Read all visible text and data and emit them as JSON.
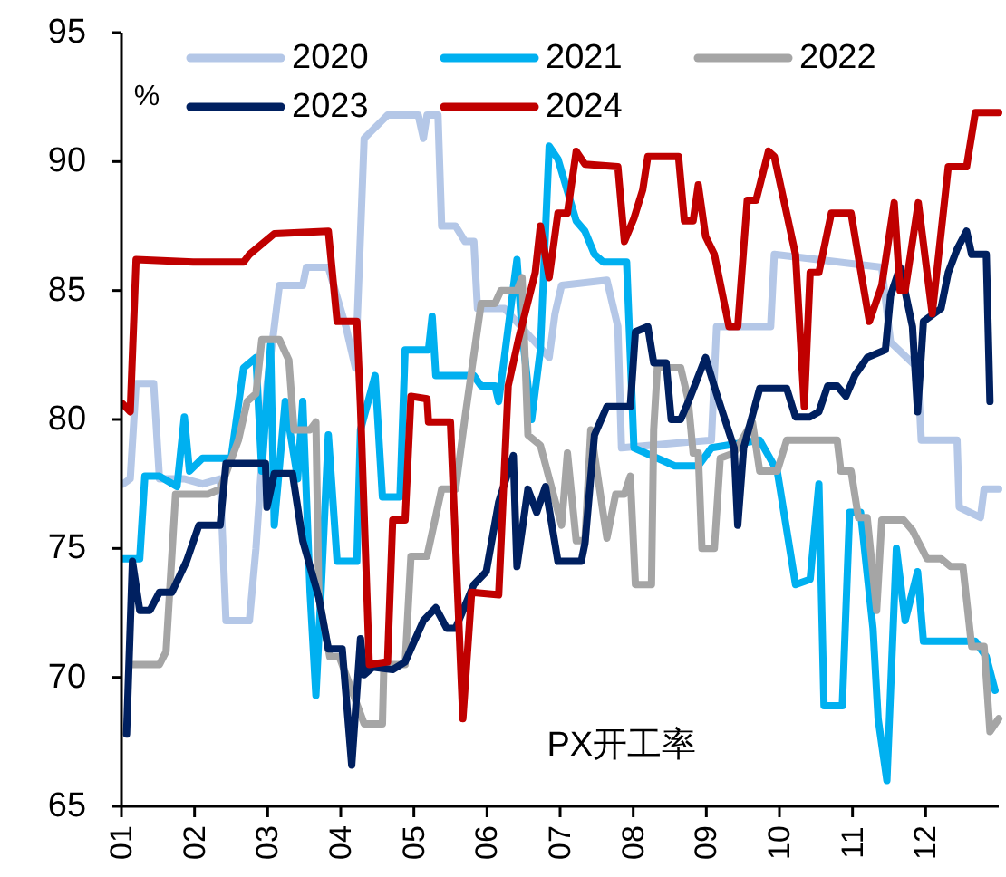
{
  "chart_data": {
    "type": "line",
    "ylabel": "%",
    "annotations": [
      "PX开工率"
    ],
    "legend": "top",
    "grid": false,
    "xlim": [
      1,
      13
    ],
    "ylim": [
      65,
      95
    ],
    "xticks": [
      {
        "value": 1,
        "label": "01"
      },
      {
        "value": 2,
        "label": "02"
      },
      {
        "value": 3,
        "label": "03"
      },
      {
        "value": 4,
        "label": "04"
      },
      {
        "value": 5,
        "label": "05"
      },
      {
        "value": 6,
        "label": "06"
      },
      {
        "value": 7,
        "label": "07"
      },
      {
        "value": 8,
        "label": "08"
      },
      {
        "value": 9,
        "label": "09"
      },
      {
        "value": 10,
        "label": "10"
      },
      {
        "value": 11,
        "label": "11"
      },
      {
        "value": 12,
        "label": "12"
      }
    ],
    "yticks": [
      65,
      70,
      75,
      80,
      85,
      90,
      95
    ],
    "series": [
      {
        "name": "2020",
        "color": "#b4c7e7",
        "x": [
          1.02,
          1.12,
          1.2,
          1.44,
          1.52,
          1.86,
          2.11,
          2.35,
          2.43,
          2.75,
          2.84,
          2.99,
          3.16,
          3.48,
          3.53,
          3.83,
          4.07,
          4.2,
          4.32,
          4.57,
          4.64,
          5.06,
          5.13,
          5.18,
          5.33,
          5.38,
          5.57,
          5.7,
          5.82,
          5.87,
          6.24,
          6.85,
          6.93,
          7.02,
          7.64,
          7.79,
          7.84,
          9.07,
          9.14,
          9.88,
          9.93,
          11.4,
          11.52,
          11.89,
          11.94,
          12.43,
          12.46,
          12.75,
          12.8,
          13.0
        ],
        "values": [
          77.5,
          77.7,
          81.4,
          81.4,
          77.7,
          77.7,
          77.5,
          77.7,
          72.2,
          72.2,
          75.0,
          81.3,
          85.2,
          85.2,
          85.9,
          85.9,
          83.6,
          82.0,
          90.9,
          91.6,
          91.8,
          91.8,
          90.9,
          91.8,
          91.8,
          87.5,
          87.5,
          86.9,
          86.9,
          84.3,
          84.3,
          82.4,
          84.1,
          85.2,
          85.4,
          83.6,
          78.9,
          79.2,
          83.6,
          83.6,
          86.4,
          85.9,
          83.0,
          82.0,
          79.2,
          79.2,
          76.6,
          76.2,
          77.3,
          77.3
        ]
      },
      {
        "name": "2021",
        "color": "#00b0f0",
        "x": [
          1.02,
          1.25,
          1.32,
          1.52,
          1.76,
          1.86,
          1.93,
          2.11,
          2.5,
          2.67,
          2.84,
          2.92,
          3.04,
          3.09,
          3.24,
          3.41,
          3.48,
          3.58,
          3.66,
          3.73,
          3.83,
          3.95,
          4.22,
          4.27,
          4.47,
          4.57,
          4.81,
          4.88,
          5.2,
          5.25,
          5.3,
          5.82,
          5.92,
          6.11,
          6.16,
          6.41,
          6.48,
          6.61,
          6.73,
          6.85,
          6.97,
          7.22,
          7.34,
          7.47,
          7.59,
          7.91,
          8.01,
          8.57,
          8.89,
          9.07,
          9.73,
          9.97,
          10.22,
          10.42,
          10.54,
          10.61,
          10.86,
          10.96,
          11.11,
          11.28,
          11.35,
          11.47,
          11.6,
          11.72,
          11.89,
          11.97,
          12.68,
          12.83,
          12.95
        ],
        "values": [
          74.6,
          74.6,
          77.8,
          77.8,
          77.4,
          80.1,
          78.0,
          78.5,
          78.5,
          82.0,
          82.4,
          78.0,
          82.9,
          75.9,
          80.7,
          77.7,
          80.7,
          73.3,
          69.3,
          73.3,
          79.4,
          74.5,
          74.5,
          79.6,
          81.7,
          77.0,
          77.0,
          82.7,
          82.7,
          84.0,
          81.7,
          81.7,
          81.3,
          81.3,
          80.7,
          86.2,
          83.4,
          80.0,
          82.7,
          90.6,
          90.1,
          87.7,
          87.3,
          86.4,
          86.1,
          86.1,
          78.9,
          78.2,
          78.2,
          78.9,
          79.2,
          78.0,
          73.6,
          73.8,
          77.5,
          68.9,
          68.9,
          76.4,
          76.4,
          71.9,
          68.4,
          66.0,
          75.0,
          72.2,
          74.1,
          71.4,
          71.4,
          70.8,
          69.5
        ]
      },
      {
        "name": "2022",
        "color": "#a5a5a5",
        "x": [
          1.15,
          1.52,
          1.61,
          1.74,
          2.18,
          2.35,
          2.6,
          2.72,
          2.84,
          2.92,
          3.16,
          3.29,
          3.36,
          3.58,
          3.66,
          3.7,
          3.85,
          3.98,
          4.32,
          4.57,
          4.59,
          4.88,
          4.96,
          5.18,
          5.38,
          5.57,
          5.7,
          5.92,
          6.11,
          6.19,
          6.41,
          6.48,
          6.56,
          6.73,
          7.02,
          7.1,
          7.22,
          7.34,
          7.42,
          7.64,
          7.76,
          7.88,
          7.96,
          8.03,
          8.25,
          8.28,
          8.33,
          8.65,
          8.75,
          8.82,
          8.89,
          8.94,
          9.11,
          9.19,
          9.38,
          9.63,
          9.73,
          9.97,
          10.1,
          10.79,
          10.84,
          10.98,
          11.08,
          11.2,
          11.33,
          11.4,
          11.7,
          11.82,
          12.02,
          12.21,
          12.34,
          12.51,
          12.63,
          12.8,
          12.88,
          13.0
        ],
        "values": [
          70.5,
          70.5,
          71.0,
          77.1,
          77.1,
          77.3,
          79.2,
          80.7,
          81.0,
          83.1,
          83.1,
          82.3,
          79.6,
          79.6,
          79.9,
          73.1,
          70.8,
          70.8,
          68.2,
          68.2,
          70.5,
          70.5,
          74.7,
          74.7,
          77.3,
          77.3,
          80.1,
          84.5,
          84.5,
          85.0,
          85.0,
          85.5,
          79.4,
          79.0,
          75.9,
          78.7,
          75.3,
          75.3,
          79.6,
          75.4,
          77.1,
          77.1,
          77.8,
          73.6,
          73.6,
          79.6,
          82.0,
          82.0,
          80.8,
          78.7,
          78.7,
          75.0,
          75.0,
          78.5,
          78.7,
          79.9,
          78.0,
          78.0,
          79.2,
          79.2,
          78.0,
          78.0,
          76.2,
          76.2,
          72.6,
          76.1,
          76.1,
          75.7,
          74.6,
          74.6,
          74.3,
          74.3,
          71.2,
          71.2,
          67.9,
          68.4
        ]
      },
      {
        "name": "2023",
        "color": "#002060",
        "x": [
          1.07,
          1.15,
          1.25,
          1.39,
          1.52,
          1.69,
          1.89,
          2.06,
          2.35,
          2.43,
          2.97,
          2.99,
          3.09,
          3.34,
          3.48,
          3.7,
          3.83,
          4.02,
          4.15,
          4.27,
          4.32,
          4.44,
          4.71,
          4.88,
          5.13,
          5.3,
          5.45,
          5.57,
          5.82,
          5.99,
          6.16,
          6.36,
          6.41,
          6.56,
          6.68,
          6.8,
          6.97,
          7.29,
          7.34,
          7.47,
          7.64,
          7.96,
          8.03,
          8.2,
          8.28,
          8.45,
          8.52,
          8.65,
          8.77,
          8.99,
          9.14,
          9.38,
          9.43,
          9.51,
          9.73,
          10.1,
          10.22,
          10.42,
          10.54,
          10.66,
          10.79,
          10.91,
          11.03,
          11.2,
          11.45,
          11.52,
          11.65,
          11.82,
          11.89,
          11.97,
          12.21,
          12.31,
          12.43,
          12.56,
          12.63,
          12.83,
          12.88
        ],
        "values": [
          67.8,
          74.5,
          72.6,
          72.6,
          73.3,
          73.3,
          74.5,
          75.9,
          75.9,
          78.3,
          78.3,
          76.6,
          77.9,
          77.9,
          75.3,
          73.1,
          71.1,
          71.1,
          66.6,
          71.5,
          70.1,
          70.4,
          70.3,
          70.6,
          72.2,
          72.7,
          71.9,
          71.9,
          73.6,
          74.1,
          76.8,
          78.6,
          74.3,
          77.3,
          76.4,
          77.4,
          74.5,
          74.5,
          75.2,
          79.4,
          80.5,
          80.5,
          83.4,
          83.6,
          82.2,
          82.2,
          80.0,
          80.0,
          80.8,
          82.4,
          81.0,
          78.9,
          75.9,
          78.9,
          81.2,
          81.2,
          80.1,
          80.1,
          80.3,
          81.3,
          81.3,
          80.9,
          81.7,
          82.4,
          82.7,
          84.8,
          85.9,
          83.6,
          80.3,
          83.8,
          84.3,
          85.7,
          86.6,
          87.3,
          86.4,
          86.4,
          80.7
        ]
      },
      {
        "name": "2024",
        "color": "#c00000",
        "x": [
          1.02,
          1.12,
          1.2,
          1.98,
          2.67,
          2.75,
          3.09,
          3.83,
          3.95,
          4.22,
          4.27,
          4.39,
          4.64,
          4.71,
          4.88,
          4.96,
          5.18,
          5.2,
          5.5,
          5.67,
          5.79,
          6.16,
          6.29,
          6.43,
          6.66,
          6.73,
          6.85,
          6.97,
          7.1,
          7.22,
          7.34,
          7.79,
          7.88,
          8.01,
          8.13,
          8.2,
          8.62,
          8.7,
          8.82,
          8.89,
          8.99,
          9.11,
          9.31,
          9.43,
          9.56,
          9.68,
          9.85,
          9.93,
          10.22,
          10.34,
          10.42,
          10.54,
          10.71,
          10.98,
          11.08,
          11.23,
          11.4,
          11.57,
          11.65,
          11.72,
          11.9,
          12.09,
          12.31,
          12.56,
          12.68,
          13.0
        ],
        "values": [
          80.6,
          80.3,
          86.2,
          86.1,
          86.1,
          86.4,
          87.2,
          87.3,
          83.8,
          83.8,
          80.5,
          70.5,
          70.6,
          76.1,
          76.1,
          80.9,
          80.8,
          79.9,
          79.9,
          68.4,
          73.3,
          73.2,
          81.3,
          83.1,
          85.7,
          87.5,
          85.5,
          88.0,
          88.0,
          90.4,
          89.9,
          89.8,
          86.9,
          87.8,
          88.9,
          90.2,
          90.2,
          87.7,
          87.7,
          89.1,
          87.1,
          86.4,
          83.6,
          83.6,
          88.5,
          88.5,
          90.4,
          90.2,
          86.4,
          80.5,
          85.7,
          85.7,
          88.0,
          88.0,
          86.3,
          83.8,
          85.2,
          88.4,
          85.0,
          85.0,
          88.4,
          84.1,
          89.8,
          89.8,
          91.9,
          91.9
        ]
      }
    ]
  }
}
